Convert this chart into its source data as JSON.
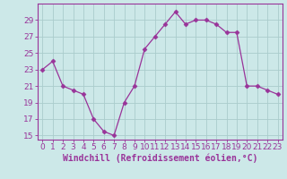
{
  "x": [
    0,
    1,
    2,
    3,
    4,
    5,
    6,
    7,
    8,
    9,
    10,
    11,
    12,
    13,
    14,
    15,
    16,
    17,
    18,
    19,
    20,
    21,
    22,
    23
  ],
  "y": [
    23,
    24,
    21,
    20.5,
    20,
    17,
    15.5,
    15,
    19,
    21,
    25.5,
    27,
    28.5,
    30,
    28.5,
    29,
    29,
    28.5,
    27.5,
    27.5,
    21,
    21,
    20.5,
    20
  ],
  "line_color": "#993399",
  "marker_color": "#993399",
  "bg_color": "#cce8e8",
  "grid_color": "#aacccc",
  "xlabel": "Windchill (Refroidissement éolien,°C)",
  "ylim": [
    14.5,
    31
  ],
  "xlim": [
    -0.5,
    23.5
  ],
  "yticks": [
    15,
    17,
    19,
    21,
    23,
    25,
    27,
    29
  ],
  "xtick_labels": [
    "0",
    "1",
    "2",
    "3",
    "4",
    "5",
    "6",
    "7",
    "8",
    "9",
    "10",
    "11",
    "12",
    "13",
    "14",
    "15",
    "16",
    "17",
    "18",
    "19",
    "20",
    "21",
    "22",
    "23"
  ],
  "axis_color": "#993399",
  "label_fontsize": 7.0,
  "tick_fontsize": 6.5,
  "linewidth": 0.9,
  "markersize": 2.5
}
